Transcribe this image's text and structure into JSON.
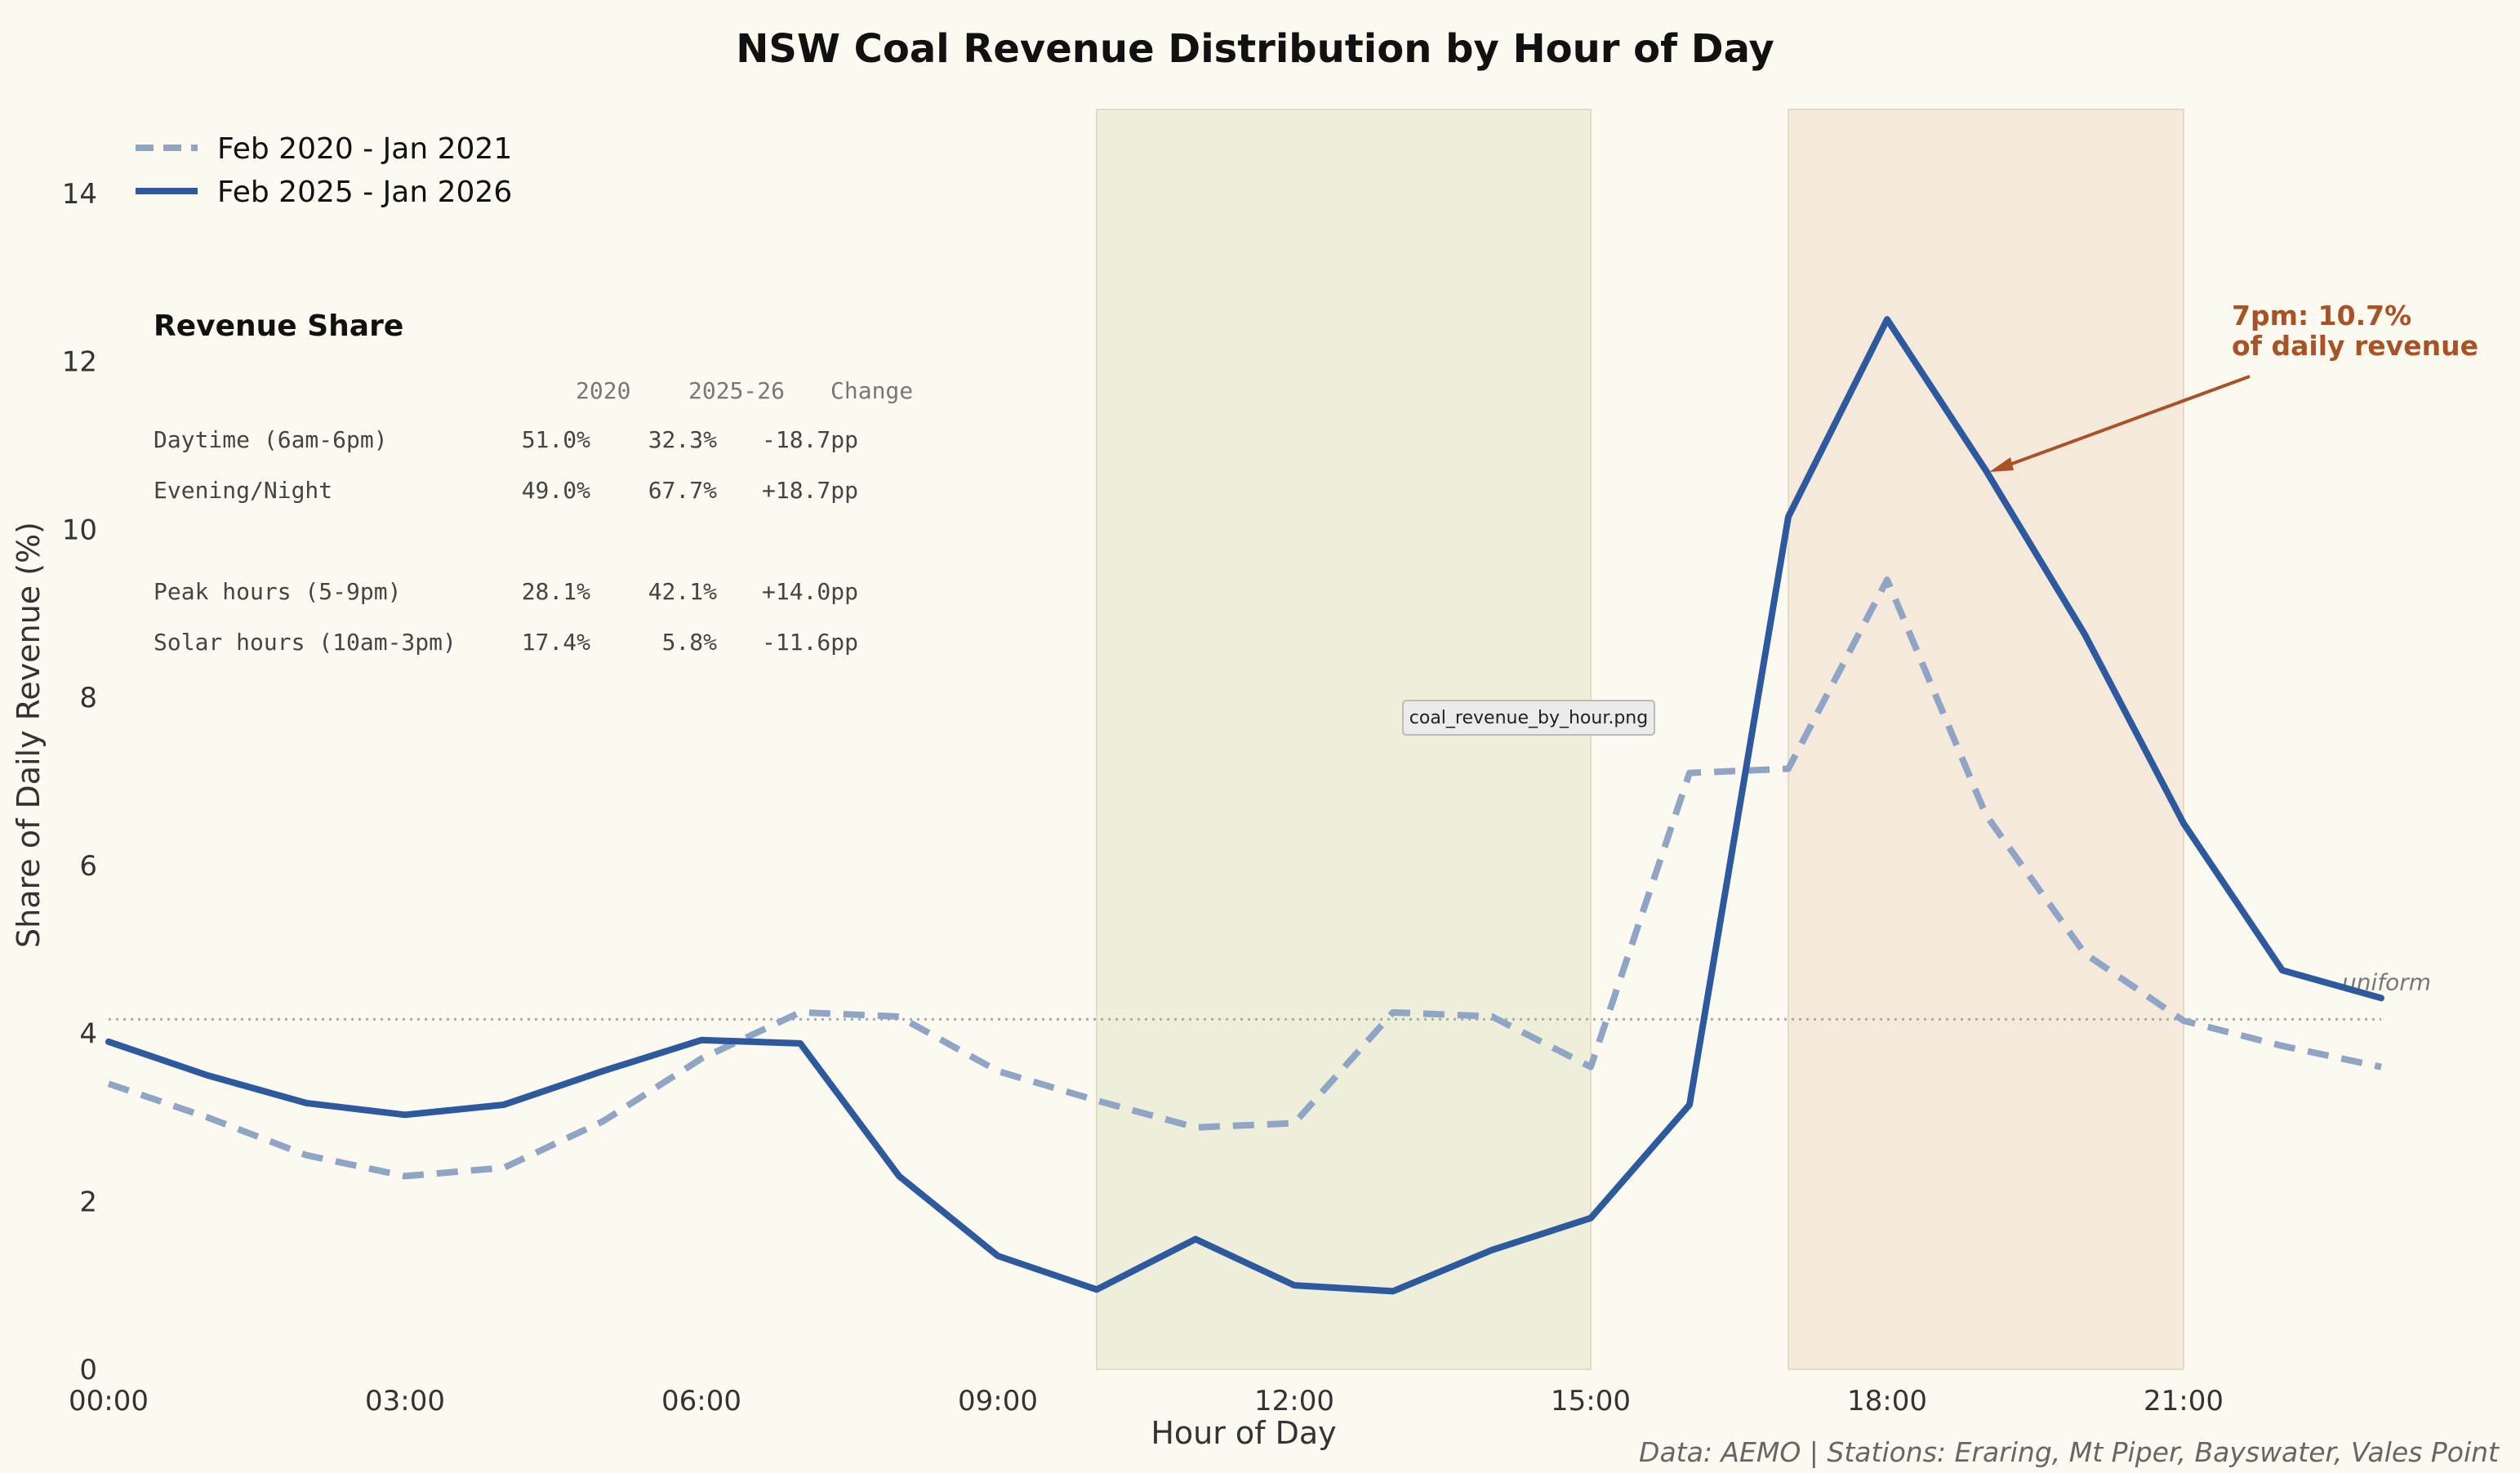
{
  "chart_data": {
    "type": "line",
    "title": "NSW Coal Revenue Distribution by Hour of Day",
    "xlabel": "Hour of Day",
    "ylabel": "Share of Daily Revenue (%)",
    "ylim": [
      0,
      15
    ],
    "xlim": [
      0,
      23
    ],
    "x_ticks": [
      "00:00",
      "03:00",
      "06:00",
      "09:00",
      "12:00",
      "15:00",
      "18:00",
      "21:00"
    ],
    "y_ticks": [
      "0",
      "2",
      "4",
      "6",
      "8",
      "10",
      "12",
      "14"
    ],
    "x": [
      0,
      1,
      2,
      3,
      4,
      5,
      6,
      7,
      8,
      9,
      10,
      11,
      12,
      13,
      14,
      15,
      16,
      17,
      18,
      19,
      20,
      21,
      22,
      23
    ],
    "series": [
      {
        "name": "Feb 2020 - Jan 2021",
        "style": "dashed",
        "color": "#8fa5c5",
        "values": [
          3.4,
          3.0,
          2.55,
          2.3,
          2.4,
          2.95,
          3.7,
          4.25,
          4.2,
          3.55,
          3.2,
          2.88,
          2.93,
          4.25,
          4.2,
          3.6,
          7.1,
          7.15,
          9.4,
          6.6,
          4.95,
          4.15,
          3.85,
          3.6
        ]
      },
      {
        "name": "Feb 2025 - Jan 2026",
        "style": "solid",
        "color": "#2d5a9e",
        "values": [
          3.9,
          3.5,
          3.17,
          3.03,
          3.15,
          3.55,
          3.92,
          3.88,
          2.3,
          1.35,
          0.95,
          1.55,
          1.0,
          0.93,
          1.42,
          1.8,
          3.15,
          10.15,
          12.5,
          10.7,
          8.75,
          6.5,
          4.75,
          4.42
        ]
      }
    ],
    "uniform_line": 4.1667,
    "shaded_regions": [
      {
        "from": 10,
        "to": 15,
        "color": "#eeeeda"
      },
      {
        "from": 17,
        "to": 21,
        "color": "#f5e9dc"
      }
    ],
    "legend_position": "top-left",
    "grid": false
  },
  "legend": {
    "s1": "Feb 2020 - Jan 2021",
    "s2": "Feb 2025 - Jan 2026"
  },
  "table": {
    "title": "Revenue Share",
    "headers": [
      "2020",
      "2025-26",
      "Change"
    ],
    "rows": [
      {
        "label": "Daytime (6am-6pm)",
        "v2020": "51.0%",
        "v2025": "32.3%",
        "change": "-18.7pp"
      },
      {
        "label": "Evening/Night",
        "v2020": "49.0%",
        "v2025": "67.7%",
        "change": "+18.7pp"
      },
      {
        "label": "Peak hours (5-9pm)",
        "v2020": "28.1%",
        "v2025": "42.1%",
        "change": "+14.0pp"
      },
      {
        "label": "Solar hours (10am-3pm)",
        "v2020": "17.4%",
        "v2025": "5.8%",
        "change": "-11.6pp"
      }
    ]
  },
  "annotation": {
    "line1": "7pm: 10.7%",
    "line2": "of daily revenue",
    "color": "#a85226"
  },
  "uniform_label": "uniform",
  "tooltip": "coal_revenue_by_hour.png",
  "source": "Data: AEMO | Stations: Eraring, Mt Piper, Bayswater, Vales Point"
}
